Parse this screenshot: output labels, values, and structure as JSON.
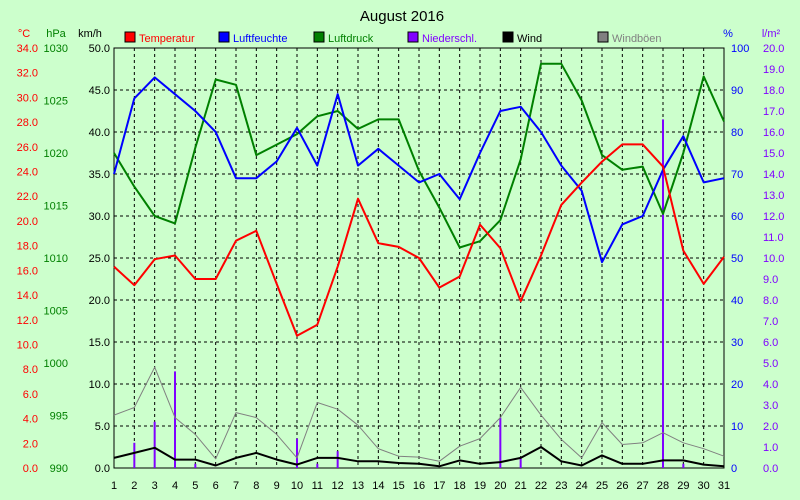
{
  "chart_data": {
    "type": "line",
    "title": "August 2016",
    "x": [
      1,
      2,
      3,
      4,
      5,
      6,
      7,
      8,
      9,
      10,
      11,
      12,
      13,
      14,
      15,
      16,
      17,
      18,
      19,
      20,
      21,
      22,
      23,
      24,
      25,
      26,
      27,
      28,
      29,
      30,
      31
    ],
    "axes": {
      "temperature": {
        "unit": "°C",
        "range": [
          0,
          34
        ],
        "ticks": [
          "0.0",
          "2.0",
          "4.0",
          "6.0",
          "8.0",
          "10.0",
          "12.0",
          "14.0",
          "16.0",
          "18.0",
          "20.0",
          "22.0",
          "24.0",
          "26.0",
          "28.0",
          "30.0",
          "32.0",
          "34.0"
        ],
        "color": "#ff0000"
      },
      "pressure": {
        "unit": "hPa",
        "range": [
          990,
          1030
        ],
        "ticks": [
          "990",
          "995",
          "1000",
          "1005",
          "1010",
          "1015",
          "1020",
          "1025",
          "1030"
        ],
        "color": "#008000"
      },
      "wind": {
        "unit": "km/h",
        "range": [
          0,
          50
        ],
        "ticks": [
          "0.0",
          "5.0",
          "10.0",
          "15.0",
          "20.0",
          "25.0",
          "30.0",
          "35.0",
          "40.0",
          "45.0",
          "50.0"
        ],
        "color": "#000000"
      },
      "humidity": {
        "unit": "%",
        "range": [
          0,
          100
        ],
        "ticks": [
          "0",
          "10",
          "20",
          "30",
          "40",
          "50",
          "60",
          "70",
          "80",
          "90",
          "100"
        ],
        "color": "#0000ff"
      },
      "precipitation": {
        "unit": "l/m²",
        "range": [
          0,
          20
        ],
        "ticks": [
          "0.0",
          "1.0",
          "2.0",
          "3.0",
          "4.0",
          "5.0",
          "6.0",
          "7.0",
          "8.0",
          "9.0",
          "10.0",
          "11.0",
          "12.0",
          "13.0",
          "14.0",
          "15.0",
          "16.0",
          "17.0",
          "18.0",
          "19.0",
          "20.0"
        ],
        "color": "#8000ff"
      }
    },
    "series": [
      {
        "name": "Temperatur",
        "axis": "temperature",
        "kind": "line",
        "color": "#ff0000",
        "values": [
          16.3,
          14.8,
          16.9,
          17.2,
          15.3,
          15.3,
          18.4,
          19.2,
          14.9,
          10.7,
          11.6,
          16.3,
          21.8,
          18.2,
          17.9,
          17.0,
          14.6,
          15.5,
          19.7,
          17.8,
          13.5,
          17.2,
          21.3,
          23.1,
          24.8,
          26.2,
          26.2,
          24.4,
          17.6,
          14.9,
          17.1
        ]
      },
      {
        "name": "Luftfeuchte",
        "axis": "humidity",
        "kind": "line",
        "color": "#0000ff",
        "values": [
          70,
          88,
          93,
          89,
          85,
          80,
          69,
          69,
          73,
          81,
          72,
          89,
          72,
          76,
          72,
          68,
          70,
          64,
          75,
          85,
          86,
          80,
          72,
          66,
          49,
          58,
          60,
          71,
          79,
          68,
          69
        ]
      },
      {
        "name": "Luftdruck",
        "axis": "pressure",
        "kind": "line",
        "color": "#008000",
        "values": [
          1020,
          1016.8,
          1014,
          1013.3,
          1020.5,
          1027,
          1026.5,
          1019.8,
          1020.8,
          1021.8,
          1023.5,
          1024,
          1022.3,
          1023.2,
          1023.2,
          1018.3,
          1014.8,
          1011,
          1011.6,
          1013.6,
          1019.4,
          1028.5,
          1028.5,
          1025,
          1019.8,
          1018.4,
          1018.7,
          1014.2,
          1020,
          1027.3,
          1023
        ]
      },
      {
        "name": "Niederschl.",
        "axis": "precipitation",
        "kind": "bar",
        "color": "#8000ff",
        "values": [
          0,
          1.2,
          2.2,
          4.6,
          0.2,
          0,
          0,
          0,
          0,
          1.4,
          0.2,
          0.8,
          0,
          0,
          0,
          0,
          0,
          0,
          0,
          2.4,
          0.5,
          0,
          0,
          0,
          0,
          0,
          0,
          16.6,
          0.2,
          0,
          0
        ]
      },
      {
        "name": "Wind",
        "axis": "wind",
        "kind": "line",
        "color": "#000000",
        "values": [
          1.2,
          1.8,
          2.4,
          1,
          1,
          0.3,
          1.2,
          1.8,
          1,
          0.4,
          1.2,
          1.2,
          0.8,
          0.8,
          0.6,
          0.5,
          0.2,
          0.9,
          0.5,
          0.7,
          1.2,
          2.5,
          0.8,
          0.3,
          1.5,
          0.5,
          0.5,
          0.9,
          0.9,
          0.4,
          0.2
        ]
      },
      {
        "name": "Windböen",
        "axis": "wind",
        "kind": "line",
        "color": "#808080",
        "values": [
          6.3,
          7.2,
          12,
          6,
          4,
          1.1,
          6.6,
          6,
          4,
          1.2,
          7.8,
          7,
          5.1,
          2.3,
          1.4,
          1.3,
          0.8,
          2.6,
          3.5,
          6,
          9.6,
          6.3,
          3.4,
          1.2,
          5.4,
          2.8,
          3,
          4.2,
          3,
          2.3,
          1.4
        ]
      }
    ]
  }
}
